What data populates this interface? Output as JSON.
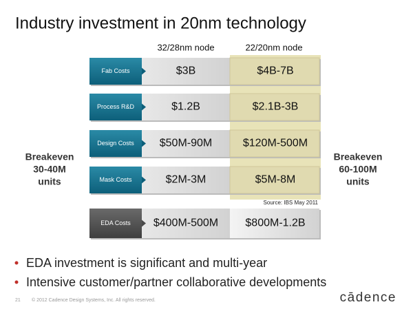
{
  "title": "Industry investment in 20nm technology",
  "columns": [
    "32/28nm node",
    "22/20nm node"
  ],
  "rows": [
    {
      "label": "Fab Costs",
      "values": [
        "$3B",
        "$4B-7B"
      ]
    },
    {
      "label": "Process R&D",
      "values": [
        "$1.2B",
        "$2.1B-3B"
      ]
    },
    {
      "label": "Design Costs",
      "values": [
        "$50M-90M",
        "$120M-500M"
      ]
    },
    {
      "label": "Mask Costs",
      "values": [
        "$2M-3M",
        "$5M-8M"
      ]
    }
  ],
  "source": "Source: IBS May 2011",
  "eda_row": {
    "label": "EDA Costs",
    "values": [
      "$400M-500M",
      "$800M-1.2B"
    ]
  },
  "breakeven_left": [
    "Breakeven",
    "30-40M",
    "units"
  ],
  "breakeven_right": [
    "Breakeven",
    "60-100M",
    "units"
  ],
  "bullets": [
    "EDA investment is significant and multi-year",
    "Intensive customer/partner collaborative developments"
  ],
  "footer": {
    "page": "21",
    "copyright": "© 2012 Cadence Design Systems, Inc. All rights reserved."
  },
  "logo": "cādence"
}
